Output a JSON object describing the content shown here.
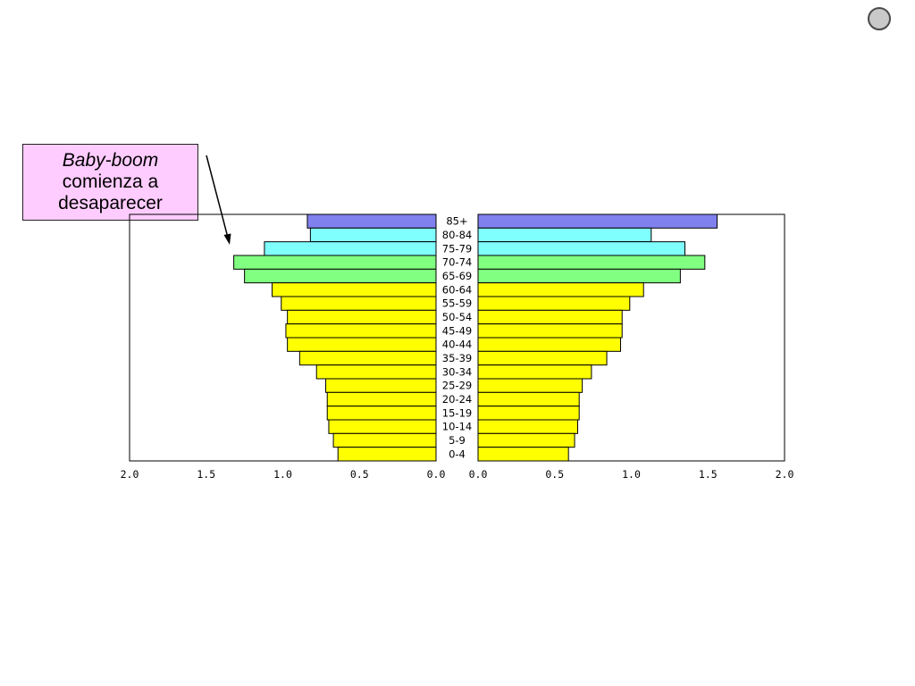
{
  "annotation": {
    "line1": "Baby-boom",
    "line2": "comienza a",
    "line3": "desaparecer"
  },
  "colors": {
    "group_85plus": "#8080ee",
    "group_75_84": "#80ffff",
    "group_65_74": "#80ff80",
    "group_0_64": "#ffff00",
    "callout_fill": "#ffccff"
  },
  "chart_data": {
    "type": "bar",
    "orientation": "horizontal-population-pyramid",
    "categories": [
      "85+",
      "80-84",
      "75-79",
      "70-74",
      "65-69",
      "60-64",
      "55-59",
      "50-54",
      "45-49",
      "40-44",
      "35-39",
      "30-34",
      "25-29",
      "20-24",
      "15-19",
      "10-14",
      "5-9",
      "0-4"
    ],
    "series": [
      {
        "side": "left",
        "values": [
          0.84,
          0.82,
          1.12,
          1.32,
          1.25,
          1.07,
          1.01,
          0.97,
          0.98,
          0.97,
          0.89,
          0.78,
          0.72,
          0.71,
          0.71,
          0.7,
          0.67,
          0.64
        ]
      },
      {
        "side": "right",
        "values": [
          1.56,
          1.13,
          1.35,
          1.48,
          1.32,
          1.08,
          0.99,
          0.94,
          0.94,
          0.93,
          0.84,
          0.74,
          0.68,
          0.66,
          0.66,
          0.65,
          0.63,
          0.59
        ]
      }
    ],
    "color_groups": [
      "group_85plus",
      "group_75_84",
      "group_75_84",
      "group_65_74",
      "group_65_74",
      "group_0_64",
      "group_0_64",
      "group_0_64",
      "group_0_64",
      "group_0_64",
      "group_0_64",
      "group_0_64",
      "group_0_64",
      "group_0_64",
      "group_0_64",
      "group_0_64",
      "group_0_64",
      "group_0_64"
    ],
    "left_ticks": [
      "2.0",
      "1.5",
      "1.0",
      "0.5",
      "0.0"
    ],
    "right_ticks": [
      "0.0",
      "0.5",
      "1.0",
      "1.5",
      "2.0"
    ],
    "xlim": [
      0,
      2.0
    ],
    "title": "",
    "xlabel": "",
    "ylabel": "",
    "grid": false,
    "legend": "none"
  }
}
